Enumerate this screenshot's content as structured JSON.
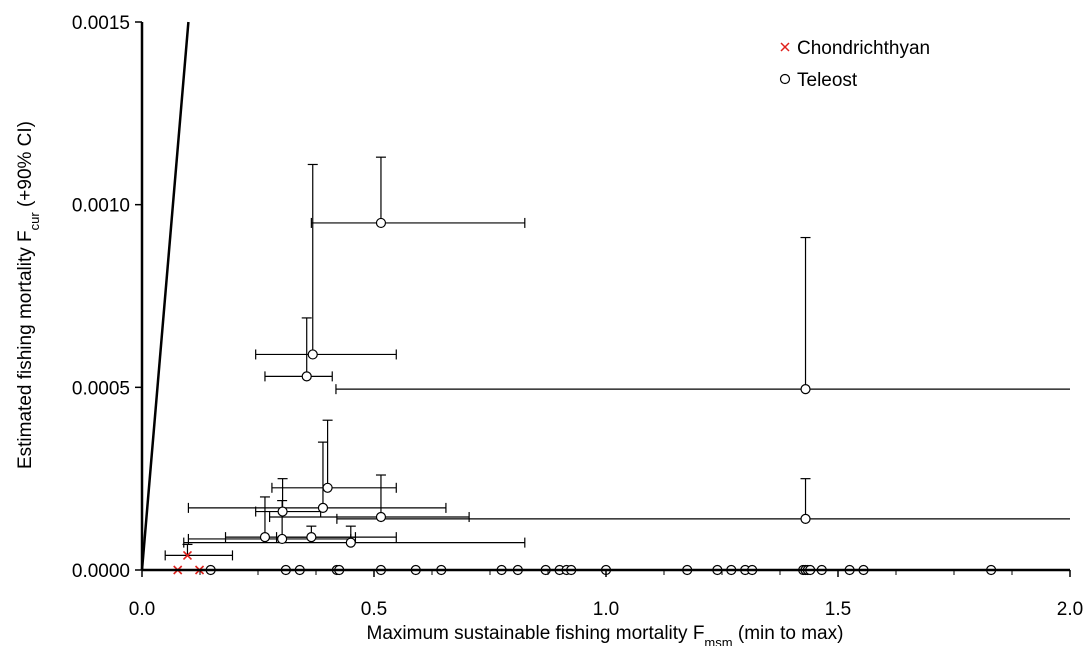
{
  "chart_data": {
    "type": "scatter",
    "xlabel": {
      "main": "Maximum sustainable fishing mortality F",
      "sub": "msm",
      "suffix": " (min to max)"
    },
    "ylabel": {
      "main": "Estimated fishing mortality F",
      "sub": "cur",
      "suffix": " (+90% CI)"
    },
    "xlim": [
      0,
      2.0
    ],
    "ylim": [
      0,
      0.0015
    ],
    "xticks": [
      0.0,
      0.5,
      1.0,
      1.5,
      2.0
    ],
    "xtick_labels": [
      "0.0",
      "0.5",
      "1.0",
      "1.5",
      "2.0"
    ],
    "yticks": [
      0,
      0.0005,
      0.001,
      0.0015
    ],
    "ytick_labels": [
      "0.0000",
      "0.0005",
      "0.0010",
      "0.0015"
    ],
    "x_minor_step": 0.125,
    "legend": {
      "position": "top-right",
      "entries": [
        {
          "label": "Chondrichthyan",
          "marker": "x",
          "color": "#e0201c"
        },
        {
          "label": "Teleost",
          "marker": "circle",
          "color": "#000000"
        }
      ]
    },
    "reference_line": {
      "from": [
        0,
        0
      ],
      "to": [
        0.1,
        0.0015
      ],
      "description": "1:1 line"
    },
    "series": [
      {
        "name": "Chondrichthyan",
        "marker": "x",
        "color": "#e0201c",
        "points": [
          {
            "x": 0.098,
            "y": 4e-05,
            "xmin": 0.05,
            "xmax": 0.195,
            "yhi": 7e-05
          },
          {
            "x": 0.077,
            "y": 0.0,
            "xmin": null,
            "xmax": null,
            "yhi": null
          },
          {
            "x": 0.124,
            "y": 0.0,
            "xmin": null,
            "xmax": null,
            "yhi": null
          }
        ]
      },
      {
        "name": "Teleost",
        "marker": "circle",
        "color": "#000000",
        "points": [
          {
            "x": 0.515,
            "y": 0.00095,
            "xmin": 0.365,
            "xmax": 0.825,
            "yhi": 0.00113
          },
          {
            "x": 0.368,
            "y": 0.00059,
            "xmin": 0.245,
            "xmax": 0.548,
            "yhi": 0.00111
          },
          {
            "x": 0.355,
            "y": 0.00053,
            "xmin": 0.265,
            "xmax": 0.41,
            "yhi": 0.00069
          },
          {
            "x": 1.43,
            "y": 0.000495,
            "xmin": 0.418,
            "xmax": 2.0,
            "yhi": 0.00091
          },
          {
            "x": 0.4,
            "y": 0.000225,
            "xmin": 0.28,
            "xmax": 0.548,
            "yhi": 0.00041
          },
          {
            "x": 0.39,
            "y": 0.00017,
            "xmin": 0.1,
            "xmax": 0.655,
            "yhi": 0.00035
          },
          {
            "x": 0.303,
            "y": 0.00016,
            "xmin": 0.245,
            "xmax": 0.385,
            "yhi": 0.00025
          },
          {
            "x": 0.515,
            "y": 0.000145,
            "xmin": 0.275,
            "xmax": 0.705,
            "yhi": 0.00026
          },
          {
            "x": 1.43,
            "y": 0.00014,
            "xmin": 0.42,
            "xmax": 2.0,
            "yhi": 0.00025
          },
          {
            "x": 0.265,
            "y": 9e-05,
            "xmin": 0.18,
            "xmax": 0.548,
            "yhi": 0.0002
          },
          {
            "x": 0.302,
            "y": 8.5e-05,
            "xmin": 0.1,
            "xmax": 0.45,
            "yhi": 0.00019
          },
          {
            "x": 0.365,
            "y": 9e-05,
            "xmin": 0.29,
            "xmax": 0.46,
            "yhi": 0.00012
          },
          {
            "x": 0.45,
            "y": 7.5e-05,
            "xmin": 0.09,
            "xmax": 0.825,
            "yhi": 0.00012
          },
          {
            "x": 0.148,
            "y": 0.0
          },
          {
            "x": 0.31,
            "y": 0.0
          },
          {
            "x": 0.34,
            "y": 0.0
          },
          {
            "x": 0.42,
            "y": 0.0
          },
          {
            "x": 0.425,
            "y": 0.0
          },
          {
            "x": 0.515,
            "y": 0.0
          },
          {
            "x": 0.59,
            "y": 0.0
          },
          {
            "x": 0.645,
            "y": 0.0
          },
          {
            "x": 0.775,
            "y": 0.0
          },
          {
            "x": 0.81,
            "y": 0.0
          },
          {
            "x": 0.87,
            "y": 0.0
          },
          {
            "x": 0.9,
            "y": 0.0
          },
          {
            "x": 0.915,
            "y": 0.0
          },
          {
            "x": 0.925,
            "y": 0.0
          },
          {
            "x": 1.0,
            "y": 0.0
          },
          {
            "x": 1.175,
            "y": 0.0
          },
          {
            "x": 1.24,
            "y": 0.0
          },
          {
            "x": 1.27,
            "y": 0.0
          },
          {
            "x": 1.3,
            "y": 0.0
          },
          {
            "x": 1.315,
            "y": 0.0
          },
          {
            "x": 1.425,
            "y": 0.0
          },
          {
            "x": 1.43,
            "y": 0.0
          },
          {
            "x": 1.435,
            "y": 0.0
          },
          {
            "x": 1.44,
            "y": 0.0
          },
          {
            "x": 1.465,
            "y": 0.0
          },
          {
            "x": 1.525,
            "y": 0.0
          },
          {
            "x": 1.555,
            "y": 0.0
          },
          {
            "x": 1.83,
            "y": 0.0
          }
        ]
      }
    ]
  }
}
